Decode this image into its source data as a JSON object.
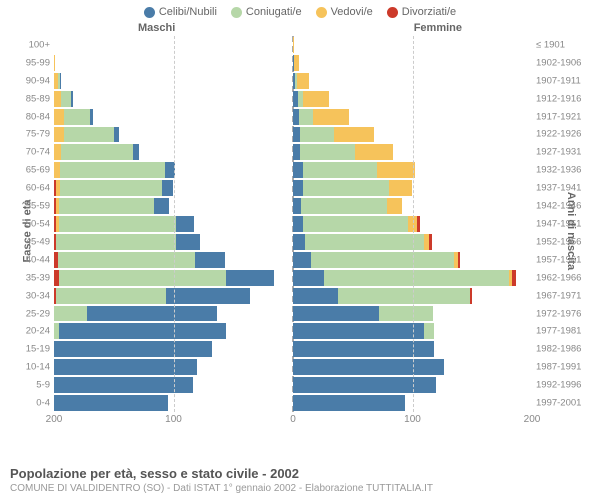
{
  "legend": {
    "items": [
      {
        "label": "Celibi/Nubili",
        "color": "#4a7ca8"
      },
      {
        "label": "Coniugati/e",
        "color": "#b6d7a8"
      },
      {
        "label": "Vedovi/e",
        "color": "#f6c35b"
      },
      {
        "label": "Divorziati/e",
        "color": "#cc3a2a"
      }
    ]
  },
  "gender_labels": {
    "male": "Maschi",
    "female": "Femmine"
  },
  "axis_labels": {
    "left": "Fasce di età",
    "right": "Anni di nascita"
  },
  "chart": {
    "type": "population-pyramid",
    "max_value": 200,
    "x_ticks": [
      200,
      100,
      0,
      100,
      200
    ],
    "background_color": "#ffffff",
    "grid_color": "#cccccc",
    "age_groups": [
      {
        "age": "0-4",
        "birth": "1997-2001",
        "m": {
          "c": 95,
          "g": 0,
          "v": 0,
          "d": 0
        },
        "f": {
          "c": 94,
          "g": 0,
          "v": 0,
          "d": 0
        }
      },
      {
        "age": "5-9",
        "birth": "1992-1996",
        "m": {
          "c": 116,
          "g": 0,
          "v": 0,
          "d": 0
        },
        "f": {
          "c": 120,
          "g": 0,
          "v": 0,
          "d": 0
        }
      },
      {
        "age": "10-14",
        "birth": "1987-1991",
        "m": {
          "c": 120,
          "g": 0,
          "v": 0,
          "d": 0
        },
        "f": {
          "c": 126,
          "g": 0,
          "v": 0,
          "d": 0
        }
      },
      {
        "age": "15-19",
        "birth": "1982-1986",
        "m": {
          "c": 132,
          "g": 0,
          "v": 0,
          "d": 0
        },
        "f": {
          "c": 118,
          "g": 0,
          "v": 0,
          "d": 0
        }
      },
      {
        "age": "20-24",
        "birth": "1977-1981",
        "m": {
          "c": 140,
          "g": 4,
          "v": 0,
          "d": 0
        },
        "f": {
          "c": 110,
          "g": 8,
          "v": 0,
          "d": 0
        }
      },
      {
        "age": "25-29",
        "birth": "1972-1976",
        "m": {
          "c": 108,
          "g": 28,
          "v": 0,
          "d": 0
        },
        "f": {
          "c": 72,
          "g": 45,
          "v": 0,
          "d": 0
        }
      },
      {
        "age": "30-34",
        "birth": "1967-1971",
        "m": {
          "c": 70,
          "g": 92,
          "v": 0,
          "d": 2
        },
        "f": {
          "c": 38,
          "g": 110,
          "v": 0,
          "d": 2
        }
      },
      {
        "age": "35-39",
        "birth": "1962-1966",
        "m": {
          "c": 40,
          "g": 140,
          "v": 0,
          "d": 4
        },
        "f": {
          "c": 26,
          "g": 155,
          "v": 2,
          "d": 4
        }
      },
      {
        "age": "40-44",
        "birth": "1957-1961",
        "m": {
          "c": 25,
          "g": 115,
          "v": 0,
          "d": 3
        },
        "f": {
          "c": 15,
          "g": 120,
          "v": 3,
          "d": 2
        }
      },
      {
        "age": "45-49",
        "birth": "1952-1956",
        "m": {
          "c": 20,
          "g": 100,
          "v": 0,
          "d": 2
        },
        "f": {
          "c": 10,
          "g": 100,
          "v": 4,
          "d": 2
        }
      },
      {
        "age": "50-54",
        "birth": "1947-1951",
        "m": {
          "c": 15,
          "g": 98,
          "v": 2,
          "d": 2
        },
        "f": {
          "c": 8,
          "g": 88,
          "v": 8,
          "d": 2
        }
      },
      {
        "age": "55-59",
        "birth": "1942-1946",
        "m": {
          "c": 12,
          "g": 80,
          "v": 2,
          "d": 2
        },
        "f": {
          "c": 7,
          "g": 72,
          "v": 12,
          "d": 0
        }
      },
      {
        "age": "60-64",
        "birth": "1937-1941",
        "m": {
          "c": 10,
          "g": 85,
          "v": 3,
          "d": 2
        },
        "f": {
          "c": 8,
          "g": 72,
          "v": 20,
          "d": 0
        }
      },
      {
        "age": "65-69",
        "birth": "1932-1936",
        "m": {
          "c": 8,
          "g": 88,
          "v": 5,
          "d": 0
        },
        "f": {
          "c": 8,
          "g": 62,
          "v": 32,
          "d": 0
        }
      },
      {
        "age": "70-74",
        "birth": "1927-1931",
        "m": {
          "c": 5,
          "g": 60,
          "v": 6,
          "d": 0
        },
        "f": {
          "c": 6,
          "g": 46,
          "v": 32,
          "d": 0
        }
      },
      {
        "age": "75-79",
        "birth": "1922-1926",
        "m": {
          "c": 4,
          "g": 42,
          "v": 8,
          "d": 0
        },
        "f": {
          "c": 6,
          "g": 28,
          "v": 34,
          "d": 0
        }
      },
      {
        "age": "80-84",
        "birth": "1917-1921",
        "m": {
          "c": 3,
          "g": 22,
          "v": 8,
          "d": 0
        },
        "f": {
          "c": 5,
          "g": 12,
          "v": 30,
          "d": 0
        }
      },
      {
        "age": "85-89",
        "birth": "1912-1916",
        "m": {
          "c": 2,
          "g": 8,
          "v": 6,
          "d": 0
        },
        "f": {
          "c": 4,
          "g": 4,
          "v": 22,
          "d": 0
        }
      },
      {
        "age": "90-94",
        "birth": "1907-1911",
        "m": {
          "c": 1,
          "g": 2,
          "v": 3,
          "d": 0
        },
        "f": {
          "c": 2,
          "g": 1,
          "v": 10,
          "d": 0
        }
      },
      {
        "age": "95-99",
        "birth": "1902-1906",
        "m": {
          "c": 0,
          "g": 0,
          "v": 1,
          "d": 0
        },
        "f": {
          "c": 1,
          "g": 0,
          "v": 4,
          "d": 0
        }
      },
      {
        "age": "100+",
        "birth": "≤ 1901",
        "m": {
          "c": 0,
          "g": 0,
          "v": 0,
          "d": 0
        },
        "f": {
          "c": 0,
          "g": 0,
          "v": 1,
          "d": 0
        }
      }
    ]
  },
  "footer": {
    "title": "Popolazione per età, sesso e stato civile - 2002",
    "subtitle": "COMUNE DI VALDIDENTRO (SO) - Dati ISTAT 1° gennaio 2002 - Elaborazione TUTTITALIA.IT"
  }
}
